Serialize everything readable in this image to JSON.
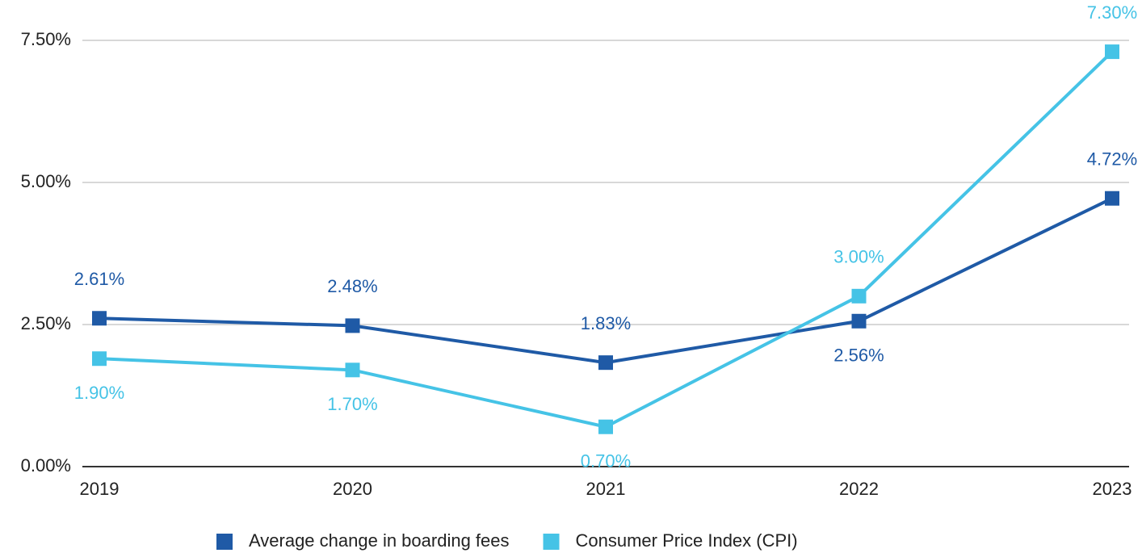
{
  "chart_data": {
    "type": "line",
    "categories": [
      "2019",
      "2020",
      "2021",
      "2022",
      "2023"
    ],
    "series": [
      {
        "name": "Average change in boarding fees",
        "color": "#1f5aa6",
        "values": [
          2.61,
          2.48,
          1.83,
          2.56,
          4.72
        ],
        "value_labels": [
          "2.61%",
          "2.48%",
          "1.83%",
          "2.56%",
          "4.72%"
        ]
      },
      {
        "name": "Consumer Price Index (CPI)",
        "color": "#45c3e6",
        "values": [
          1.9,
          1.7,
          0.7,
          3.0,
          7.3
        ],
        "value_labels": [
          "1.90%",
          "1.70%",
          "0.70%",
          "3.00%",
          "7.30%"
        ]
      }
    ],
    "ylim": [
      0,
      7.5
    ],
    "yticks": [
      {
        "value": 0,
        "label": "0.00%"
      },
      {
        "value": 2.5,
        "label": "2.50%"
      },
      {
        "value": 5,
        "label": "5.00%"
      },
      {
        "value": 7.5,
        "label": "7.50%"
      }
    ],
    "grid": true
  }
}
